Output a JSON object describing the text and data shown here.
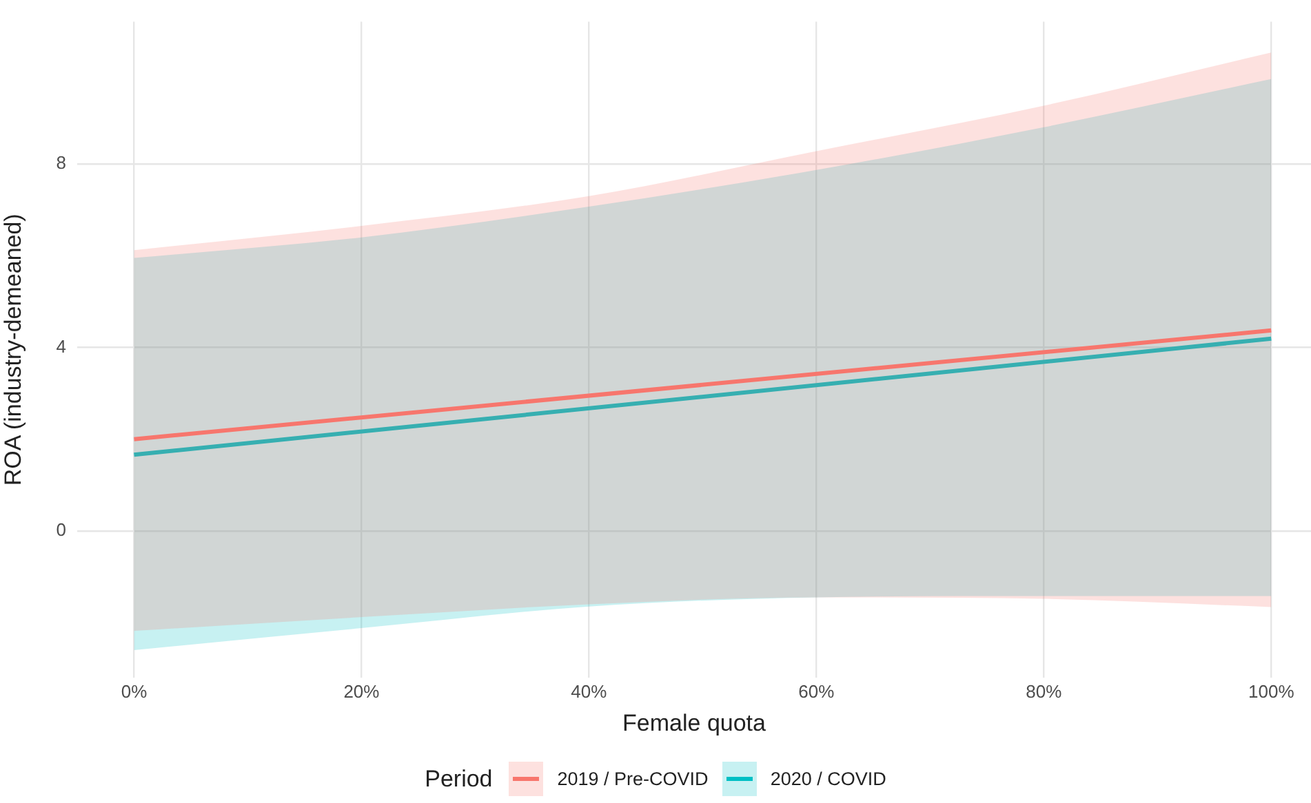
{
  "chart_data": {
    "type": "line",
    "xlabel": "Female quota",
    "ylabel": "ROA (industry-demeaned)",
    "legend_title": "Period",
    "x": [
      0,
      20,
      40,
      60,
      80,
      100
    ],
    "series": [
      {
        "name": "2019 / Pre-COVID",
        "color": "#f8766d",
        "values": [
          2.0,
          null,
          null,
          null,
          null,
          4.37
        ],
        "lower": [
          -2.18,
          -1.88,
          -1.6,
          -1.45,
          -1.48,
          -1.66
        ],
        "upper": [
          6.12,
          6.65,
          7.3,
          8.28,
          9.27,
          10.43
        ]
      },
      {
        "name": "2020 / COVID",
        "color": "#00bfc4",
        "values": [
          1.66,
          null,
          null,
          null,
          null,
          4.19
        ],
        "lower": [
          -2.6,
          -2.12,
          -1.65,
          -1.45,
          -1.42,
          -1.42
        ],
        "upper": [
          5.95,
          6.4,
          7.07,
          7.87,
          8.8,
          9.85
        ]
      }
    ],
    "xlim": [
      -5,
      103.5
    ],
    "xticks": [
      {
        "value": 0,
        "label": "0%"
      },
      {
        "value": 20,
        "label": "20%"
      },
      {
        "value": 40,
        "label": "40%"
      },
      {
        "value": 60,
        "label": "60%"
      },
      {
        "value": 80,
        "label": "80%"
      },
      {
        "value": 100,
        "label": "100%"
      }
    ],
    "ylim": [
      -3.2,
      11.1
    ],
    "yticks": [
      0,
      4,
      8
    ],
    "grid": true,
    "legend": "bottom"
  }
}
